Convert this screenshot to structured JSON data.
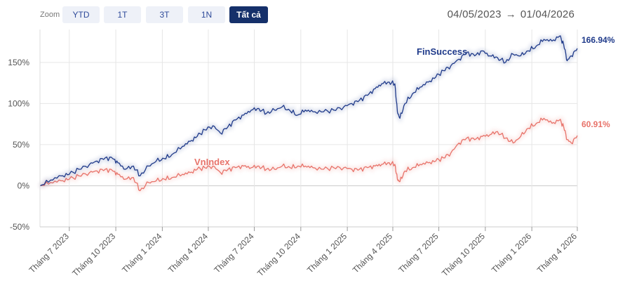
{
  "toolbar": {
    "zoom_label": "Zoom",
    "buttons": [
      {
        "label": "YTD",
        "active": false
      },
      {
        "label": "1T",
        "active": false
      },
      {
        "label": "3T",
        "active": false
      },
      {
        "label": "1N",
        "active": false
      },
      {
        "label": "Tất cả",
        "active": true
      }
    ],
    "range_from": "04/05/2023",
    "range_arrow": "→",
    "range_to": "01/04/2026"
  },
  "colors": {
    "finsuccess": "#1f3a8a",
    "vnindex": "#e8736a",
    "grid": "#e6e6e6",
    "zero_line": "#cccccc",
    "active_button": "#15306a"
  },
  "chart_data": {
    "type": "line",
    "x_range": [
      "2023-05-04",
      "2026-04-01"
    ],
    "ylim": [
      -50,
      190
    ],
    "y_ticks": [
      -50,
      0,
      50,
      100,
      150
    ],
    "y_tick_labels": [
      "-50%",
      "0%",
      "50%",
      "100%",
      "150%"
    ],
    "x_tick_labels": [
      "Tháng 7 2023",
      "Tháng 10 2023",
      "Tháng 1 2024",
      "Tháng 4 2024",
      "Tháng 7 2024",
      "Tháng 10 2024",
      "Tháng 1 2025",
      "Tháng 4 2025",
      "Tháng 7 2025",
      "Tháng 10 2025",
      "Tháng 1 2026",
      "Tháng 4 2026"
    ],
    "x_tick_dates": [
      "2023-07-01",
      "2023-10-01",
      "2024-01-01",
      "2024-04-01",
      "2024-07-01",
      "2024-10-01",
      "2025-01-01",
      "2025-04-01",
      "2025-07-01",
      "2025-10-01",
      "2026-01-01",
      "2026-04-01"
    ],
    "grid": true,
    "series": [
      {
        "name": "FinSuccess",
        "last_value_label": "166.94%",
        "points": [
          [
            "2023-05-04",
            0
          ],
          [
            "2023-05-25",
            7
          ],
          [
            "2023-06-15",
            12
          ],
          [
            "2023-07-01",
            14
          ],
          [
            "2023-07-20",
            20
          ],
          [
            "2023-08-10",
            26
          ],
          [
            "2023-08-25",
            30
          ],
          [
            "2023-09-10",
            34
          ],
          [
            "2023-09-25",
            33
          ],
          [
            "2023-10-05",
            28
          ],
          [
            "2023-10-20",
            20
          ],
          [
            "2023-11-05",
            24
          ],
          [
            "2023-11-18",
            12
          ],
          [
            "2023-12-05",
            24
          ],
          [
            "2023-12-20",
            30
          ],
          [
            "2024-01-05",
            33
          ],
          [
            "2024-01-20",
            38
          ],
          [
            "2024-02-10",
            48
          ],
          [
            "2024-02-25",
            54
          ],
          [
            "2024-03-10",
            60
          ],
          [
            "2024-03-25",
            68
          ],
          [
            "2024-04-10",
            73
          ],
          [
            "2024-04-25",
            64
          ],
          [
            "2024-05-10",
            72
          ],
          [
            "2024-05-25",
            80
          ],
          [
            "2024-06-10",
            86
          ],
          [
            "2024-06-25",
            92
          ],
          [
            "2024-07-10",
            94
          ],
          [
            "2024-07-25",
            88
          ],
          [
            "2024-08-10",
            92
          ],
          [
            "2024-08-25",
            96
          ],
          [
            "2024-09-10",
            91
          ],
          [
            "2024-09-25",
            86
          ],
          [
            "2024-10-10",
            92
          ],
          [
            "2024-10-25",
            90
          ],
          [
            "2024-11-15",
            90
          ],
          [
            "2024-12-05",
            92
          ],
          [
            "2024-12-25",
            96
          ],
          [
            "2025-01-10",
            100
          ],
          [
            "2025-01-25",
            104
          ],
          [
            "2025-02-10",
            110
          ],
          [
            "2025-02-25",
            118
          ],
          [
            "2025-03-10",
            124
          ],
          [
            "2025-03-25",
            126
          ],
          [
            "2025-04-05",
            124
          ],
          [
            "2025-04-10",
            90
          ],
          [
            "2025-04-15",
            82
          ],
          [
            "2025-04-25",
            100
          ],
          [
            "2025-05-10",
            112
          ],
          [
            "2025-05-25",
            120
          ],
          [
            "2025-06-10",
            126
          ],
          [
            "2025-06-25",
            132
          ],
          [
            "2025-07-10",
            140
          ],
          [
            "2025-07-25",
            146
          ],
          [
            "2025-08-10",
            154
          ],
          [
            "2025-08-25",
            162
          ],
          [
            "2025-09-10",
            158
          ],
          [
            "2025-09-25",
            164
          ],
          [
            "2025-10-10",
            158
          ],
          [
            "2025-10-25",
            156
          ],
          [
            "2025-11-10",
            150
          ],
          [
            "2025-11-25",
            160
          ],
          [
            "2025-12-10",
            158
          ],
          [
            "2025-12-25",
            164
          ],
          [
            "2026-01-10",
            170
          ],
          [
            "2026-01-25",
            178
          ],
          [
            "2026-02-10",
            176
          ],
          [
            "2026-02-25",
            182
          ],
          [
            "2026-03-05",
            172
          ],
          [
            "2026-03-12",
            152
          ],
          [
            "2026-03-20",
            158
          ],
          [
            "2026-04-01",
            166.94
          ]
        ]
      },
      {
        "name": "VnIndex",
        "last_value_label": "60.91%",
        "points": [
          [
            "2023-05-04",
            0
          ],
          [
            "2023-05-25",
            4
          ],
          [
            "2023-06-15",
            6
          ],
          [
            "2023-07-01",
            8
          ],
          [
            "2023-07-20",
            12
          ],
          [
            "2023-08-10",
            16
          ],
          [
            "2023-08-25",
            18
          ],
          [
            "2023-09-10",
            20
          ],
          [
            "2023-09-25",
            18
          ],
          [
            "2023-10-05",
            14
          ],
          [
            "2023-10-20",
            8
          ],
          [
            "2023-11-05",
            10
          ],
          [
            "2023-11-18",
            -6
          ],
          [
            "2023-12-05",
            4
          ],
          [
            "2023-12-20",
            6
          ],
          [
            "2024-01-05",
            8
          ],
          [
            "2024-01-20",
            10
          ],
          [
            "2024-02-10",
            14
          ],
          [
            "2024-02-25",
            16
          ],
          [
            "2024-03-10",
            20
          ],
          [
            "2024-03-25",
            22
          ],
          [
            "2024-04-10",
            24
          ],
          [
            "2024-04-25",
            16
          ],
          [
            "2024-05-10",
            20
          ],
          [
            "2024-05-25",
            22
          ],
          [
            "2024-06-10",
            24
          ],
          [
            "2024-06-25",
            22
          ],
          [
            "2024-07-10",
            24
          ],
          [
            "2024-07-25",
            20
          ],
          [
            "2024-08-10",
            20
          ],
          [
            "2024-08-25",
            24
          ],
          [
            "2024-09-10",
            22
          ],
          [
            "2024-09-25",
            24
          ],
          [
            "2024-10-10",
            24
          ],
          [
            "2024-10-25",
            22
          ],
          [
            "2024-11-15",
            20
          ],
          [
            "2024-12-05",
            22
          ],
          [
            "2024-12-25",
            22
          ],
          [
            "2025-01-10",
            20
          ],
          [
            "2025-01-25",
            20
          ],
          [
            "2025-02-10",
            22
          ],
          [
            "2025-02-25",
            24
          ],
          [
            "2025-03-10",
            26
          ],
          [
            "2025-03-25",
            28
          ],
          [
            "2025-04-05",
            26
          ],
          [
            "2025-04-10",
            8
          ],
          [
            "2025-04-15",
            5
          ],
          [
            "2025-04-25",
            18
          ],
          [
            "2025-05-10",
            22
          ],
          [
            "2025-05-25",
            26
          ],
          [
            "2025-06-10",
            28
          ],
          [
            "2025-06-25",
            30
          ],
          [
            "2025-07-10",
            34
          ],
          [
            "2025-07-25",
            40
          ],
          [
            "2025-08-10",
            52
          ],
          [
            "2025-08-25",
            58
          ],
          [
            "2025-09-10",
            56
          ],
          [
            "2025-09-25",
            60
          ],
          [
            "2025-10-10",
            62
          ],
          [
            "2025-10-25",
            66
          ],
          [
            "2025-11-10",
            58
          ],
          [
            "2025-11-25",
            52
          ],
          [
            "2025-12-10",
            60
          ],
          [
            "2025-12-25",
            70
          ],
          [
            "2026-01-10",
            76
          ],
          [
            "2026-01-25",
            82
          ],
          [
            "2026-02-10",
            76
          ],
          [
            "2026-02-25",
            80
          ],
          [
            "2026-03-05",
            72
          ],
          [
            "2026-03-12",
            56
          ],
          [
            "2026-03-20",
            52
          ],
          [
            "2026-04-01",
            60.91
          ]
        ]
      }
    ]
  }
}
